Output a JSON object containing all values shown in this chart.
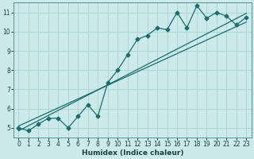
{
  "xlabel": "Humidex (Indice chaleur)",
  "background_color": "#cceaea",
  "grid_color": "#b0d5d5",
  "line_color": "#1a6e6e",
  "x_data": [
    0,
    1,
    2,
    3,
    4,
    5,
    6,
    7,
    8,
    9,
    10,
    11,
    12,
    13,
    14,
    15,
    16,
    17,
    18,
    19,
    20,
    21,
    22,
    23
  ],
  "y_main": [
    5.0,
    4.85,
    5.2,
    5.5,
    5.5,
    5.0,
    5.6,
    6.2,
    5.6,
    7.35,
    8.0,
    8.8,
    9.6,
    9.8,
    10.2,
    10.1,
    11.0,
    10.2,
    11.35,
    10.7,
    11.0,
    10.8,
    10.35,
    10.75
  ],
  "trend1_x": [
    0,
    23
  ],
  "trend1_y": [
    5.1,
    10.5
  ],
  "trend2_x": [
    0,
    23
  ],
  "trend2_y": [
    4.85,
    10.95
  ],
  "ylim": [
    4.5,
    11.5
  ],
  "xlim": [
    -0.5,
    23.5
  ],
  "yticks": [
    5,
    6,
    7,
    8,
    9,
    10,
    11
  ],
  "xticks": [
    0,
    1,
    2,
    3,
    4,
    5,
    6,
    7,
    8,
    9,
    10,
    11,
    12,
    13,
    14,
    15,
    16,
    17,
    18,
    19,
    20,
    21,
    22,
    23
  ],
  "xlabel_fontsize": 6.5,
  "tick_fontsize": 5.5,
  "xlabel_color": "#1a4040",
  "tick_color": "#1a4040"
}
